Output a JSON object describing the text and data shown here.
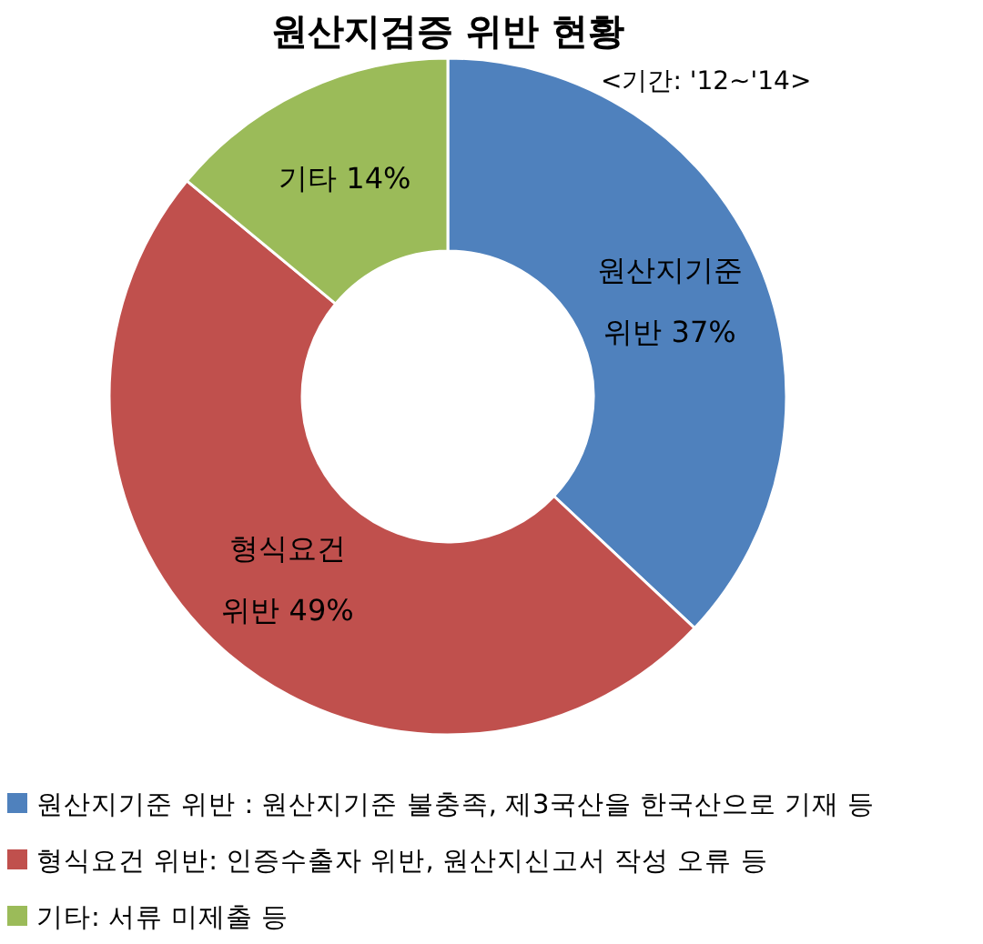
{
  "chart_data": {
    "type": "donut",
    "title": "원산지검증 위반 현황",
    "subtitle": "<기간: '12~'14>",
    "categories": [
      "원산지기준 위반 : 원산지기준 불충족, 제3국산을 한국산으로 기재 등",
      "형식요건 위반:  인증수출자 위반, 원산지신고서 작성 오류 등",
      "기타: 서류 미제출 등"
    ],
    "values": [
      37,
      49,
      14
    ],
    "colors": [
      "#4f81bd",
      "#c0504d",
      "#9bbb59"
    ],
    "value_labels": [
      "원산지기준 위반 37%",
      "형식요건 위반 49%",
      "기타 14%"
    ],
    "legend": "bottom"
  }
}
